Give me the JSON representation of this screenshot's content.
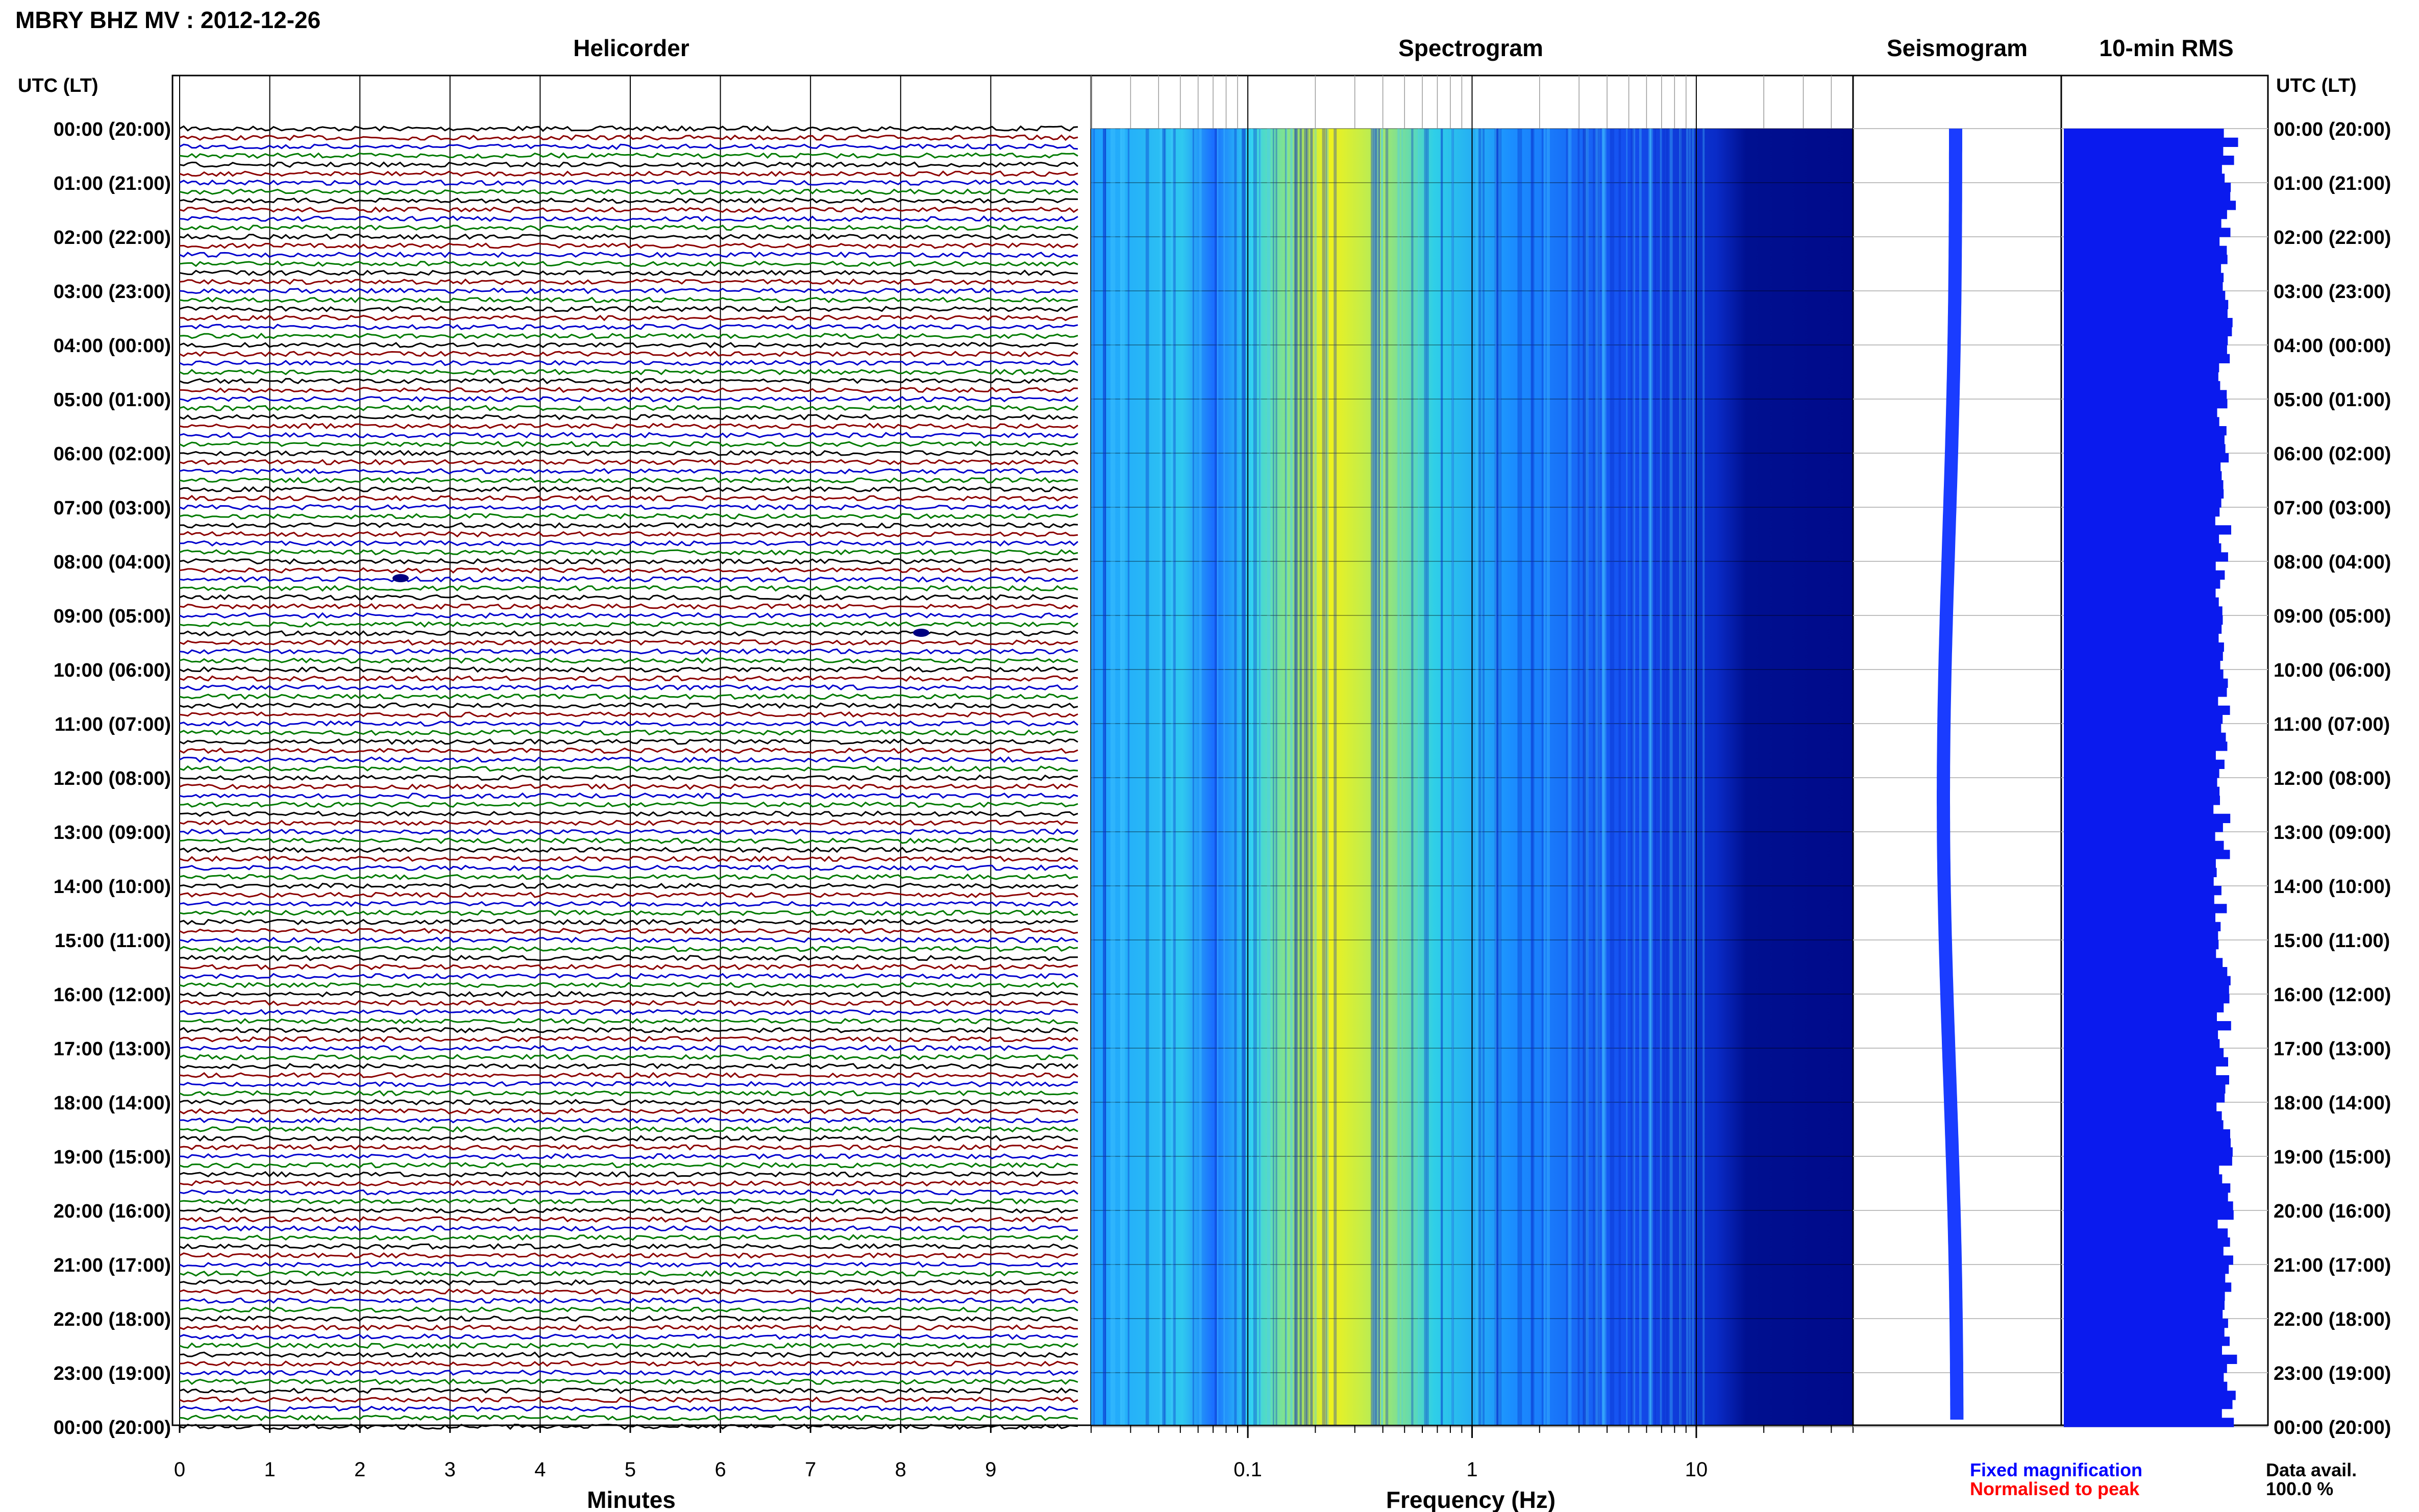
{
  "title": "MBRY BHZ MV : 2012-12-26",
  "panels": {
    "helicorder": "Helicorder",
    "spectrogram": "Spectrogram",
    "seismogram": "Seismogram",
    "rms": "10-min RMS"
  },
  "time_axis_label": "UTC (LT)",
  "time_labels": [
    "00:00 (20:00)",
    "01:00 (21:00)",
    "02:00 (22:00)",
    "03:00 (23:00)",
    "04:00 (00:00)",
    "05:00 (01:00)",
    "06:00 (02:00)",
    "07:00 (03:00)",
    "08:00 (04:00)",
    "09:00 (05:00)",
    "10:00 (06:00)",
    "11:00 (07:00)",
    "12:00 (08:00)",
    "13:00 (09:00)",
    "14:00 (10:00)",
    "15:00 (11:00)",
    "16:00 (12:00)",
    "17:00 (13:00)",
    "18:00 (14:00)",
    "19:00 (15:00)",
    "20:00 (16:00)",
    "21:00 (17:00)",
    "22:00 (18:00)",
    "23:00 (19:00)",
    "00:00 (20:00)"
  ],
  "minutes_ticks": [
    "0",
    "1",
    "2",
    "3",
    "4",
    "5",
    "6",
    "7",
    "8",
    "9"
  ],
  "minutes_label": "Minutes",
  "freq_ticks": [
    "0.1",
    "1",
    "10"
  ],
  "freq_label": "Frequency (Hz)",
  "legend": {
    "fixed": "Fixed magnification",
    "normalised": "Normalised to peak",
    "fixed_color": "#0000ff",
    "normalised_color": "#ff0000"
  },
  "data_avail": {
    "label": "Data avail.",
    "value": "100.0 %"
  },
  "colors": {
    "trace_cycle": [
      "#000000",
      "#8b0000",
      "#0000cd",
      "#007a00"
    ],
    "rms_bar": "#0a1aee",
    "seismogram": "#1a3cff"
  },
  "chart_data": [
    {
      "type": "line",
      "title": "Helicorder",
      "xlabel": "Minutes",
      "xlim": [
        0,
        10
      ],
      "traces_per_hour": 6,
      "trace_minutes": 10,
      "hours": 24
    },
    {
      "type": "heatmap",
      "title": "Spectrogram",
      "xlabel": "Frequency (Hz)",
      "xscale": "log",
      "xlim": [
        0.02,
        50
      ],
      "peak_frequency_hz": 0.25,
      "colormap": "jet"
    },
    {
      "type": "line",
      "title": "Seismogram",
      "hours": 24
    },
    {
      "type": "bar",
      "title": "10-min RMS",
      "orientation": "horizontal",
      "interval_minutes": 10,
      "relative_level": 0.85
    }
  ]
}
